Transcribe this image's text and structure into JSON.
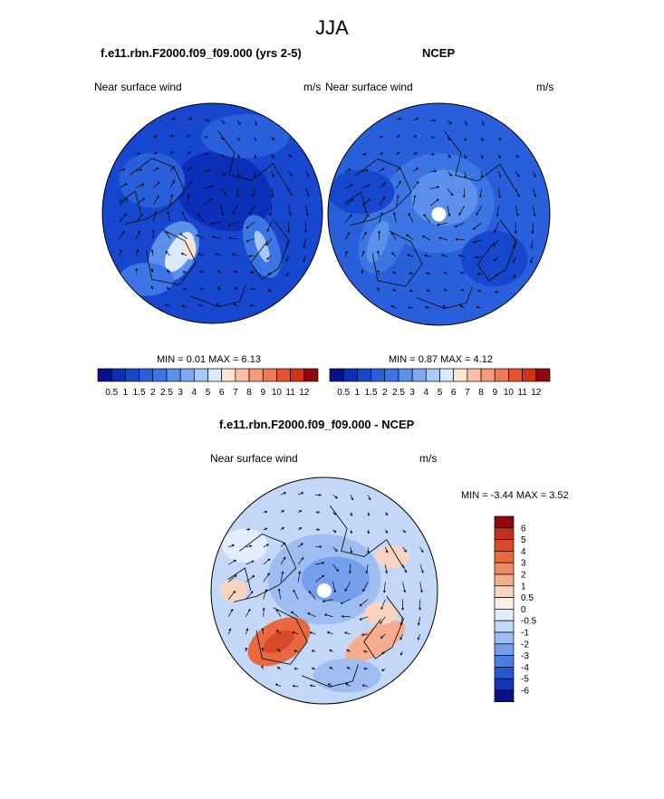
{
  "figure": {
    "title": "JJA"
  },
  "chart_data": [
    {
      "type": "heatmap",
      "title": "f.e11.rbn.F2000.f09_f09.000 (yrs 2-5)",
      "left_label": "Near surface wind",
      "right_label": "m/s",
      "projection": "polar stereographic",
      "min_text": "MIN =   0.01 MAX =   6.13",
      "min": 0.01,
      "max": 6.13,
      "colorbar": {
        "orientation": "horizontal",
        "levels": [
          "0.5",
          "1",
          "1.5",
          "2",
          "2.5",
          "3",
          "4",
          "5",
          "6",
          "7",
          "8",
          "9",
          "10",
          "11",
          "12"
        ],
        "colors": [
          "#08108a",
          "#0b2fb8",
          "#1747cf",
          "#2a5fdc",
          "#3d76e4",
          "#5b90ec",
          "#7eaaf2",
          "#a9c8f7",
          "#dbe9fb",
          "#fde3d2",
          "#f8c1a4",
          "#f49c79",
          "#ef7a56",
          "#e4532f",
          "#cc3318",
          "#8f0a0a"
        ]
      }
    },
    {
      "type": "heatmap",
      "title": "NCEP",
      "left_label": "Near surface wind",
      "right_label": "m/s",
      "projection": "polar stereographic",
      "min_text": "MIN =   0.87 MAX =   4.12",
      "min": 0.87,
      "max": 4.12,
      "colorbar": {
        "orientation": "horizontal",
        "levels": [
          "0.5",
          "1",
          "1.5",
          "2",
          "2.5",
          "3",
          "4",
          "5",
          "6",
          "7",
          "8",
          "9",
          "10",
          "11",
          "12"
        ],
        "colors": [
          "#08108a",
          "#0b2fb8",
          "#1747cf",
          "#2a5fdc",
          "#3d76e4",
          "#5b90ec",
          "#7eaaf2",
          "#a9c8f7",
          "#dbe9fb",
          "#fde3d2",
          "#f8c1a4",
          "#f49c79",
          "#ef7a56",
          "#e4532f",
          "#cc3318",
          "#8f0a0a"
        ]
      }
    },
    {
      "type": "heatmap",
      "title": "f.e11.rbn.F2000.f09_f09.000 - NCEP",
      "left_label": "Near surface wind",
      "right_label": "m/s",
      "projection": "polar stereographic",
      "min_text": "MIN =  -3.44 MAX =   3.52",
      "min": -3.44,
      "max": 3.52,
      "colorbar": {
        "orientation": "vertical",
        "levels": [
          "6",
          "5",
          "4",
          "3",
          "2",
          "1",
          "0.5",
          "0",
          "-0.5",
          "-1",
          "-2",
          "-3",
          "-4",
          "-5",
          "-6"
        ],
        "colors": [
          "#8f0a0a",
          "#c0321a",
          "#da4a2a",
          "#e8693f",
          "#ef8c66",
          "#f5ad8e",
          "#fad4c0",
          "#fdeee6",
          "#e3edfb",
          "#c3d8f8",
          "#9dbdf3",
          "#739fec",
          "#4b7ee2",
          "#2856d0",
          "#1436b5",
          "#08108a"
        ]
      }
    }
  ]
}
